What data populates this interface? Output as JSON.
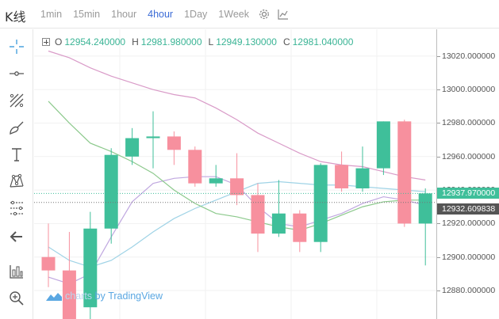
{
  "topbar": {
    "title": "K线",
    "intervals": [
      {
        "label": "1min",
        "active": false
      },
      {
        "label": "15min",
        "active": false
      },
      {
        "label": "1hour",
        "active": false
      },
      {
        "label": "4hour",
        "active": true
      },
      {
        "label": "1Day",
        "active": false
      },
      {
        "label": "1Week",
        "active": false
      }
    ],
    "settings_icon": "gear-icon",
    "indicators_icon": "line-chart-icon"
  },
  "toolbar": {
    "tools": [
      {
        "name": "crosshair-icon"
      },
      {
        "name": "trend-line-icon"
      },
      {
        "name": "fib-retracement-icon"
      },
      {
        "name": "brush-icon"
      },
      {
        "name": "text-icon"
      },
      {
        "name": "pattern-icon"
      },
      {
        "name": "measure-icon"
      },
      {
        "name": "back-arrow-icon"
      },
      {
        "name": "chart-layout-icon"
      },
      {
        "name": "zoom-icon"
      }
    ]
  },
  "ohlc": {
    "o_label": "O",
    "o_value": "12954.240000",
    "h_label": "H",
    "h_value": "12981.980000",
    "l_label": "L",
    "l_value": "12949.130000",
    "c_label": "C",
    "c_value": "12981.040000"
  },
  "watermark": {
    "prefix": "charts",
    "by": "by",
    "brand": "TradingView"
  },
  "price_axis": {
    "ticks": [
      "13020.000000",
      "13000.000000",
      "12980.000000",
      "12960.000000",
      "12940.000000",
      "12920.000000",
      "12900.000000",
      "12880.000000"
    ],
    "last_price_label": "12937.970000",
    "ma_price_label": "12932.609838"
  },
  "colors": {
    "up": "#3fbf9a",
    "down": "#f7909e",
    "accent": "#3b6bd6",
    "ma_pink": "#d99bc8",
    "ma_purple": "#c0a8e0",
    "ma_blue": "#9fd3e6",
    "ma_green": "#8cc98c"
  },
  "chart_data": {
    "type": "candlestick",
    "y_range": [
      12863,
      13036
    ],
    "y_ticks": [
      13020,
      13000,
      12980,
      12960,
      12940,
      12920,
      12900,
      12880
    ],
    "current_price": 12937.97,
    "ma_value": 12932.609838,
    "candles": [
      {
        "o": 12900,
        "h": 12920,
        "l": 12882,
        "c": 12892
      },
      {
        "o": 12892,
        "h": 12915,
        "l": 12858,
        "c": 12860
      },
      {
        "o": 12870,
        "h": 12927,
        "l": 12860,
        "c": 12917
      },
      {
        "o": 12917,
        "h": 12965,
        "l": 12908,
        "c": 12961
      },
      {
        "o": 12960,
        "h": 12977,
        "l": 12955,
        "c": 12971
      },
      {
        "o": 12971,
        "h": 12987,
        "l": 12953,
        "c": 12972
      },
      {
        "o": 12972,
        "h": 12975,
        "l": 12955,
        "c": 12964
      },
      {
        "o": 12964,
        "h": 12966,
        "l": 12942,
        "c": 12944
      },
      {
        "o": 12944,
        "h": 12955,
        "l": 12942,
        "c": 12947
      },
      {
        "o": 12947,
        "h": 12962,
        "l": 12931,
        "c": 12937
      },
      {
        "o": 12937,
        "h": 12944,
        "l": 12903,
        "c": 12914
      },
      {
        "o": 12914,
        "h": 12946,
        "l": 12912,
        "c": 12926
      },
      {
        "o": 12926,
        "h": 12928,
        "l": 12903,
        "c": 12909
      },
      {
        "o": 12909,
        "h": 12956,
        "l": 12903,
        "c": 12955
      },
      {
        "o": 12955,
        "h": 12963,
        "l": 12939,
        "c": 12941
      },
      {
        "o": 12941,
        "h": 12966,
        "l": 12939,
        "c": 12953
      },
      {
        "o": 12953,
        "h": 12981,
        "l": 12949,
        "c": 12981
      },
      {
        "o": 12981,
        "h": 12982,
        "l": 12918,
        "c": 12920
      },
      {
        "o": 12920,
        "h": 12941,
        "l": 12895,
        "c": 12938
      }
    ],
    "ma_lines": [
      {
        "color": "#d99bc8",
        "points": [
          13023,
          13019,
          13013,
          13008,
          13004,
          13000,
          12997,
          12995,
          12989,
          12982,
          12974,
          12968,
          12962,
          12957,
          12955,
          12954,
          12951,
          12948,
          12946
        ]
      },
      {
        "color": "#c0a8e0",
        "points": [
          12888,
          12884,
          12890,
          12912,
          12933,
          12944,
          12947,
          12948,
          12948,
          12943,
          12930,
          12920,
          12918,
          12922,
          12926,
          12932,
          12936,
          12934,
          12931
        ]
      },
      {
        "color": "#9fd3e6",
        "points": [
          12906,
          12898,
          12894,
          12898,
          12906,
          12915,
          12923,
          12929,
          12934,
          12939,
          12944,
          12945,
          12944,
          12943,
          12943,
          12942,
          12941,
          12940,
          12939
        ]
      },
      {
        "color": "#8cc98c",
        "points": [
          12993,
          12980,
          12968,
          12963,
          12957,
          12950,
          12940,
          12932,
          12926,
          12924,
          12921,
          12918,
          12916,
          12920,
          12925,
          12930,
          12933,
          12934,
          12934
        ]
      }
    ]
  }
}
